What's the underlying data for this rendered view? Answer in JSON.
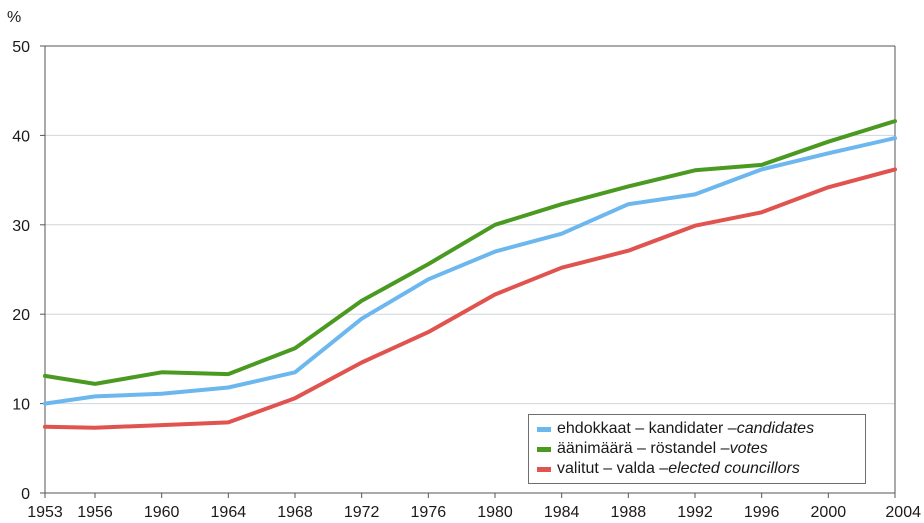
{
  "chart_data": {
    "type": "line",
    "y_unit_label": "%",
    "ylim": [
      0,
      50
    ],
    "y_ticks": [
      0,
      10,
      20,
      30,
      40,
      50
    ],
    "xlim": [
      1953,
      2004
    ],
    "x_ticks": [
      1953,
      1956,
      1960,
      1964,
      1968,
      1972,
      1976,
      1980,
      1984,
      1988,
      1992,
      1996,
      2000,
      2004
    ],
    "x": [
      1953,
      1956,
      1960,
      1964,
      1968,
      1972,
      1976,
      1980,
      1984,
      1988,
      1992,
      1996,
      2000,
      2004
    ],
    "grid": true,
    "legend_placement": "bottom-right",
    "series": [
      {
        "name": "ehdokkaat – kandidater – ",
        "name_en": "candidates",
        "color": "#6cb7ee",
        "values": [
          10.0,
          10.8,
          11.1,
          11.8,
          13.5,
          19.5,
          23.9,
          27.0,
          29.0,
          32.3,
          33.4,
          36.2,
          38.0,
          39.7
        ]
      },
      {
        "name": "äänimäärä – röstandel – ",
        "name_en": "votes",
        "color": "#4a9a22",
        "values": [
          13.1,
          12.2,
          13.5,
          13.3,
          16.2,
          21.5,
          25.6,
          30.0,
          32.3,
          34.3,
          36.1,
          36.7,
          39.3,
          41.6
        ]
      },
      {
        "name": "valitut – valda – ",
        "name_en": "elected councillors",
        "color": "#e0534f",
        "values": [
          7.4,
          7.3,
          7.6,
          7.9,
          10.6,
          14.6,
          18.0,
          22.2,
          25.2,
          27.1,
          29.9,
          31.4,
          34.2,
          36.2
        ]
      }
    ]
  }
}
